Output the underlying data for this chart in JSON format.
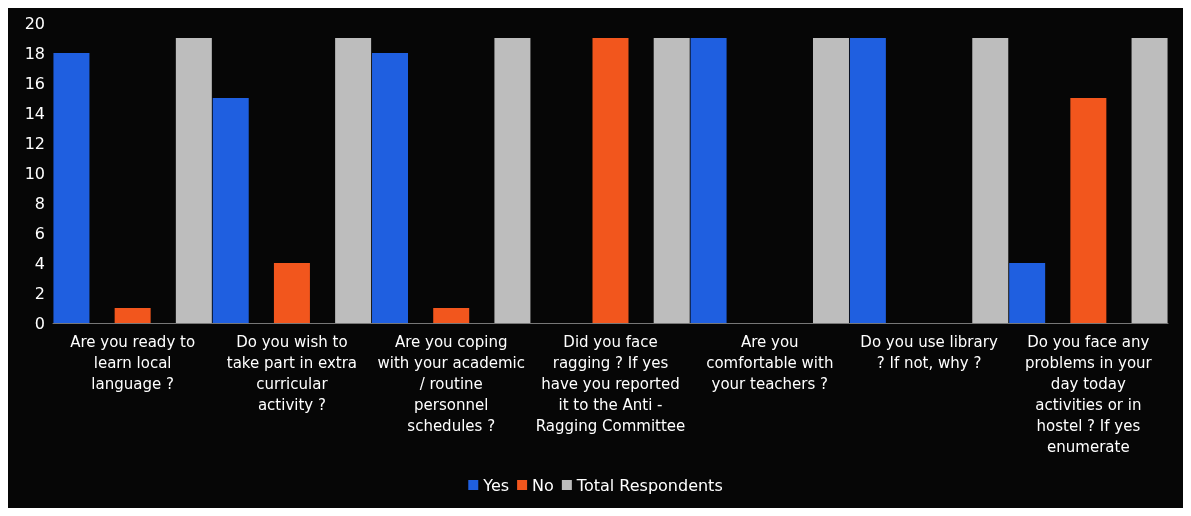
{
  "chart_data": {
    "type": "bar",
    "categories": [
      "Are you ready to learn local language ?",
      "Do you wish to take part in extra curricular activity ?",
      "Are you coping with your academic / routine personnel schedules ?",
      "Did you face ragging ? If yes have you reported it to the Anti - Ragging Committee",
      "Are you comfortable with your teachers ?",
      "Do you use library ? If not, why ?",
      "Do you face any problems in your day today activities or in hostel ? If yes enumerate"
    ],
    "series": [
      {
        "name": "Yes",
        "color": "#1f5fe0",
        "values": [
          18,
          15,
          18,
          0,
          19,
          19,
          4
        ]
      },
      {
        "name": "No",
        "color": "#f2561d",
        "values": [
          1,
          4,
          1,
          19,
          0,
          0,
          15
        ]
      },
      {
        "name": "Total Respondents",
        "color": "#bdbdbd",
        "values": [
          19,
          19,
          19,
          19,
          19,
          19,
          19
        ]
      }
    ],
    "ylim": [
      0,
      20
    ],
    "yticks": [
      0,
      2,
      4,
      6,
      8,
      10,
      12,
      14,
      16,
      18,
      20
    ],
    "grid": false,
    "legend": "bottom"
  }
}
